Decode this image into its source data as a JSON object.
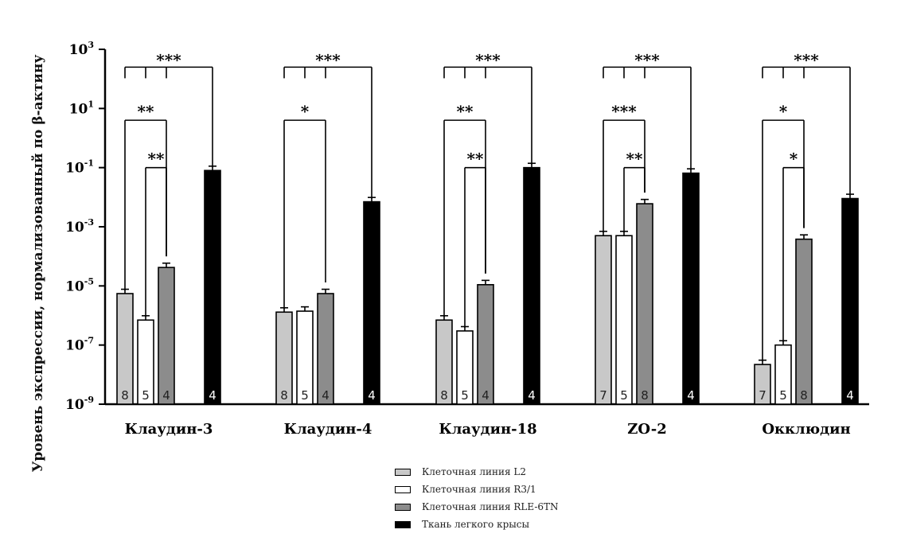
{
  "chart_data": {
    "type": "bar",
    "ylabel": "Уровень экспрессии, нормализованный по β-актину",
    "yscale": "log",
    "ylim": [
      1e-09,
      1000
    ],
    "yticks": [
      {
        "value": 1e-09,
        "base": "10",
        "exp": "-9"
      },
      {
        "value": 1e-07,
        "base": "10",
        "exp": "-7"
      },
      {
        "value": 1e-05,
        "base": "10",
        "exp": "-5"
      },
      {
        "value": 0.001,
        "base": "10",
        "exp": "-3"
      },
      {
        "value": 0.1,
        "base": "10",
        "exp": "-1"
      },
      {
        "value": 10,
        "base": "10",
        "exp": "1"
      },
      {
        "value": 1000,
        "base": "10",
        "exp": "3"
      }
    ],
    "categories": [
      "Клаудин-3",
      "Клаудин-4",
      "Клаудин-18",
      "ZO-2",
      "Окклюдин"
    ],
    "series": [
      {
        "name": "Клеточная линия L2",
        "color": "#c8c8c8",
        "values": [
          5.5e-06,
          1.3e-06,
          7e-07,
          0.0005,
          2.2e-08
        ],
        "n": [
          "8",
          "8",
          "8",
          "7",
          "7"
        ]
      },
      {
        "name": "Клеточная линия R3/1",
        "color": "#ffffff",
        "values": [
          7e-07,
          1.4e-06,
          3e-07,
          0.0005,
          1e-07
        ],
        "n": [
          "5",
          "5",
          "5",
          "5",
          "5"
        ]
      },
      {
        "name": "Клеточная линия RLE-6TN",
        "color": "#8c8c8c",
        "values": [
          4.2e-05,
          5.5e-06,
          1.1e-05,
          0.006,
          0.00038
        ],
        "n": [
          "4",
          "4",
          "4",
          "8",
          "8"
        ]
      },
      {
        "name": "Ткань легкого крысы",
        "color": "#000000",
        "values": [
          0.08,
          0.007,
          0.1,
          0.065,
          0.009
        ],
        "n": [
          "4",
          "4",
          "4",
          "4",
          "4"
        ]
      }
    ],
    "significance": [
      [
        {
          "label": "***",
          "type": "triple",
          "to": 3
        },
        {
          "label": "**",
          "from": 0,
          "to": 2,
          "level": 2
        },
        {
          "label": "**",
          "from": 1,
          "to": 2,
          "level": 1
        }
      ],
      [
        {
          "label": "***",
          "type": "triple",
          "to": 3
        },
        {
          "label": "*",
          "from": 0,
          "to": 2,
          "level": 2
        }
      ],
      [
        {
          "label": "***",
          "type": "triple",
          "to": 3
        },
        {
          "label": "**",
          "from": 0,
          "to": 2,
          "level": 2
        },
        {
          "label": "**",
          "from": 1,
          "to": 2,
          "level": 1
        }
      ],
      [
        {
          "label": "***",
          "type": "triple",
          "to": 3
        },
        {
          "label": "***",
          "from": 0,
          "to": 2,
          "level": 2
        },
        {
          "label": "**",
          "from": 1,
          "to": 2,
          "level": 1
        }
      ],
      [
        {
          "label": "***",
          "type": "triple",
          "to": 3
        },
        {
          "label": "*",
          "from": 0,
          "to": 2,
          "level": 2
        },
        {
          "label": "*",
          "from": 1,
          "to": 2,
          "level": 1
        }
      ]
    ],
    "legend_position": "bottom-center",
    "grid": false
  }
}
